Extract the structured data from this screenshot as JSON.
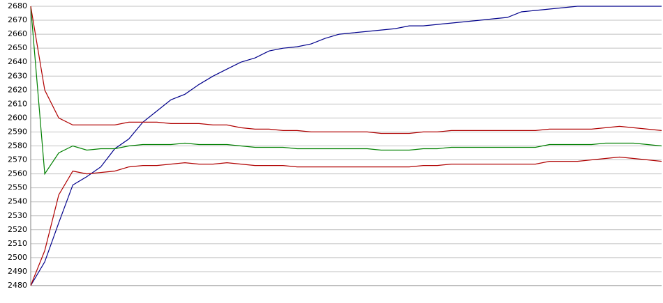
{
  "chart_data": {
    "type": "line",
    "ylim": [
      2480,
      2680
    ],
    "yticks": [
      2480,
      2490,
      2500,
      2510,
      2520,
      2530,
      2540,
      2550,
      2560,
      2570,
      2580,
      2590,
      2600,
      2610,
      2620,
      2630,
      2640,
      2650,
      2660,
      2670,
      2680
    ],
    "grid": true,
    "series": [
      {
        "color": "#00008b",
        "values": [
          2480,
          2497,
          2525,
          2552,
          2558,
          2565,
          2578,
          2585,
          2597,
          2605,
          2613,
          2617,
          2624,
          2630,
          2635,
          2640,
          2643,
          2648,
          2650,
          2651,
          2653,
          2657,
          2660,
          2661,
          2662,
          2663,
          2664,
          2666,
          2666,
          2667,
          2668,
          2669,
          2670,
          2671,
          2672,
          2676,
          2677,
          2678,
          2679,
          2680,
          2680,
          2680,
          2680,
          2680,
          2680,
          2680
        ]
      },
      {
        "color": "#008000",
        "values": [
          2680,
          2560,
          2575,
          2580,
          2577,
          2578,
          2578,
          2580,
          2581,
          2581,
          2581,
          2582,
          2581,
          2581,
          2581,
          2580,
          2579,
          2579,
          2579,
          2578,
          2578,
          2578,
          2578,
          2578,
          2578,
          2577,
          2577,
          2577,
          2578,
          2578,
          2579,
          2579,
          2579,
          2579,
          2579,
          2579,
          2579,
          2581,
          2581,
          2581,
          2581,
          2582,
          2582,
          2582,
          2581,
          2580
        ]
      },
      {
        "color": "#b00000",
        "values": [
          2680,
          2620,
          2600,
          2595,
          2595,
          2595,
          2595,
          2597,
          2597,
          2597,
          2596,
          2596,
          2596,
          2595,
          2595,
          2593,
          2592,
          2592,
          2591,
          2591,
          2590,
          2590,
          2590,
          2590,
          2590,
          2589,
          2589,
          2589,
          2590,
          2590,
          2591,
          2591,
          2591,
          2591,
          2591,
          2591,
          2591,
          2592,
          2592,
          2592,
          2592,
          2593,
          2594,
          2593,
          2592,
          2591
        ]
      },
      {
        "color": "#b00000",
        "values": [
          2480,
          2505,
          2545,
          2562,
          2560,
          2561,
          2562,
          2565,
          2566,
          2566,
          2567,
          2568,
          2567,
          2567,
          2568,
          2567,
          2566,
          2566,
          2566,
          2565,
          2565,
          2565,
          2565,
          2565,
          2565,
          2565,
          2565,
          2565,
          2566,
          2566,
          2567,
          2567,
          2567,
          2567,
          2567,
          2567,
          2567,
          2569,
          2569,
          2569,
          2570,
          2571,
          2572,
          2571,
          2570,
          2569
        ]
      }
    ]
  }
}
